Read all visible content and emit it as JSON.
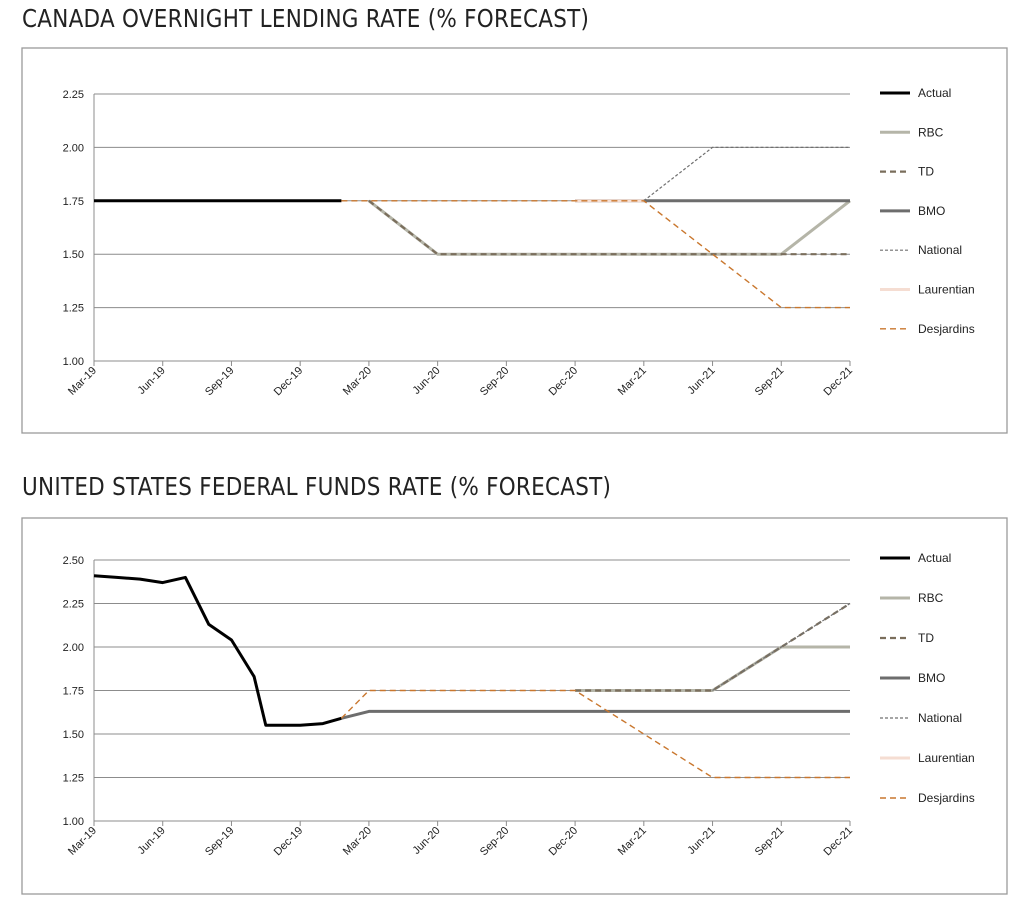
{
  "chart_data": [
    {
      "type": "line",
      "title": "CANADA OVERNIGHT LENDING RATE (% FORECAST)",
      "xlabel": "",
      "ylabel": "",
      "ylim": [
        1.0,
        2.25
      ],
      "yticks": [
        "1.00",
        "1.25",
        "1.50",
        "1.75",
        "2.00",
        "2.25"
      ],
      "categories": [
        "Mar-19",
        "Jun-19",
        "Sep-19",
        "Dec-19",
        "Mar-20",
        "Jun-20",
        "Sep-20",
        "Dec-20",
        "Mar-21",
        "Jun-21",
        "Sep-21",
        "Dec-21"
      ],
      "legend_position": "right",
      "series": [
        {
          "name": "Actual",
          "color": "#000000",
          "style": "solid",
          "points": [
            [
              0,
              1.75
            ],
            [
              3.6,
              1.75
            ]
          ]
        },
        {
          "name": "RBC",
          "color": "#b5b5a8",
          "style": "solid",
          "points": [
            [
              4,
              1.75
            ],
            [
              5,
              1.5
            ],
            [
              10,
              1.5
            ],
            [
              11,
              1.75
            ]
          ]
        },
        {
          "name": "TD",
          "color": "#7a6e5c",
          "style": "dashed",
          "points": [
            [
              4,
              1.75
            ],
            [
              5,
              1.5
            ],
            [
              11,
              1.5
            ]
          ]
        },
        {
          "name": "BMO",
          "color": "#6d6d6d",
          "style": "solid",
          "points": [
            [
              7,
              1.75
            ],
            [
              11,
              1.75
            ]
          ]
        },
        {
          "name": "National",
          "color": "#707070",
          "style": "dotted",
          "points": [
            [
              8,
              1.75
            ],
            [
              9,
              2.0
            ],
            [
              11,
              2.0
            ]
          ]
        },
        {
          "name": "Laurentian",
          "color": "#f5ddd2",
          "style": "solid",
          "points": [
            [
              7,
              1.75
            ],
            [
              8,
              1.75
            ]
          ]
        },
        {
          "name": "Desjardins",
          "color": "#c9772e",
          "style": "dashed",
          "points": [
            [
              3.6,
              1.75
            ],
            [
              8,
              1.75
            ],
            [
              10,
              1.25
            ],
            [
              11,
              1.25
            ]
          ]
        }
      ]
    },
    {
      "type": "line",
      "title": "UNITED STATES FEDERAL FUNDS RATE (% FORECAST)",
      "xlabel": "",
      "ylabel": "",
      "ylim": [
        1.0,
        2.5
      ],
      "yticks": [
        "1.00",
        "1.25",
        "1.50",
        "1.75",
        "2.00",
        "2.25",
        "2.50"
      ],
      "categories": [
        "Mar-19",
        "Jun-19",
        "Sep-19",
        "Dec-19",
        "Mar-20",
        "Jun-20",
        "Sep-20",
        "Dec-20",
        "Mar-21",
        "Jun-21",
        "Sep-21",
        "Dec-21"
      ],
      "legend_position": "right",
      "series": [
        {
          "name": "Actual",
          "color": "#000000",
          "style": "solid",
          "points": [
            [
              0,
              2.41
            ],
            [
              0.33,
              2.4
            ],
            [
              0.67,
              2.39
            ],
            [
              1,
              2.37
            ],
            [
              1.33,
              2.4
            ],
            [
              1.67,
              2.13
            ],
            [
              2,
              2.04
            ],
            [
              2.33,
              1.83
            ],
            [
              2.5,
              1.55
            ],
            [
              3,
              1.55
            ],
            [
              3.33,
              1.56
            ],
            [
              3.6,
              1.59
            ]
          ]
        },
        {
          "name": "RBC",
          "color": "#b5b5a8",
          "style": "solid",
          "points": [
            [
              7,
              1.75
            ],
            [
              9,
              1.75
            ],
            [
              10,
              2.0
            ],
            [
              11,
              2.0
            ]
          ]
        },
        {
          "name": "TD",
          "color": "#7a6e5c",
          "style": "dashed",
          "points": [
            [
              7,
              1.75
            ],
            [
              9,
              1.75
            ],
            [
              11,
              2.25
            ]
          ]
        },
        {
          "name": "BMO",
          "color": "#6d6d6d",
          "style": "solid",
          "points": [
            [
              3.6,
              1.59
            ],
            [
              4,
              1.63
            ],
            [
              11,
              1.63
            ]
          ]
        },
        {
          "name": "National",
          "color": "#707070",
          "style": "dotted",
          "points": [
            [
              9,
              1.75
            ],
            [
              10,
              2.0
            ],
            [
              11,
              2.25
            ]
          ]
        },
        {
          "name": "Laurentian",
          "color": "#f5ddd2",
          "style": "solid",
          "points": []
        },
        {
          "name": "Desjardins",
          "color": "#c9772e",
          "style": "dashed",
          "points": [
            [
              3.6,
              1.59
            ],
            [
              4,
              1.75
            ],
            [
              7,
              1.75
            ],
            [
              9,
              1.25
            ],
            [
              11,
              1.25
            ]
          ]
        }
      ]
    }
  ]
}
